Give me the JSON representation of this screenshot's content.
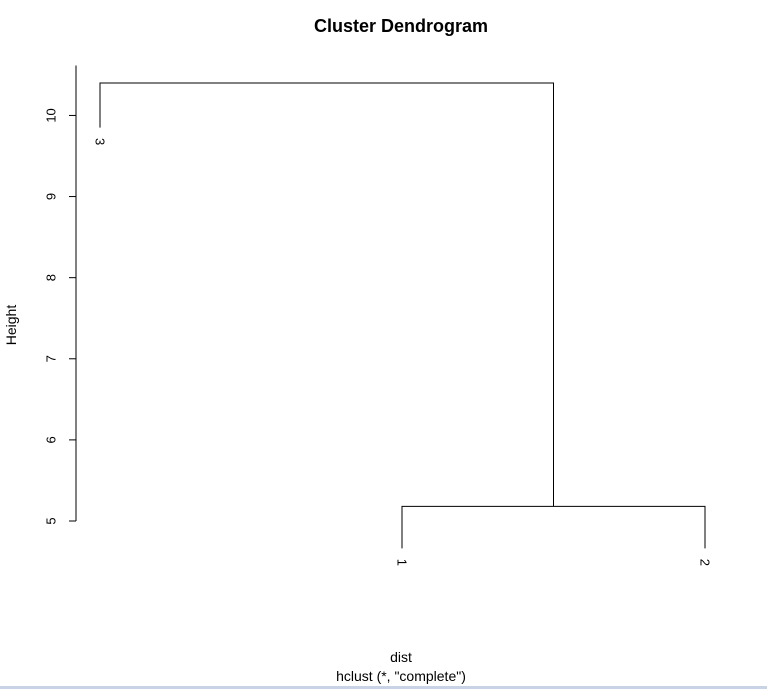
{
  "chart_data": {
    "type": "dendrogram",
    "title": "Cluster Dendrogram",
    "xlabel": "dist",
    "sublabel": "hclust (*, \"complete\")",
    "ylabel": "Height",
    "ylim": [
      5,
      10.4
    ],
    "yticks": [
      5,
      6,
      7,
      8,
      9,
      10
    ],
    "leaves": [
      "3",
      "1",
      "2"
    ],
    "merges": [
      {
        "left": "1",
        "right": "2",
        "height": 5.18
      },
      {
        "left": "3",
        "right": "{1,2}",
        "height": 10.4
      }
    ]
  }
}
